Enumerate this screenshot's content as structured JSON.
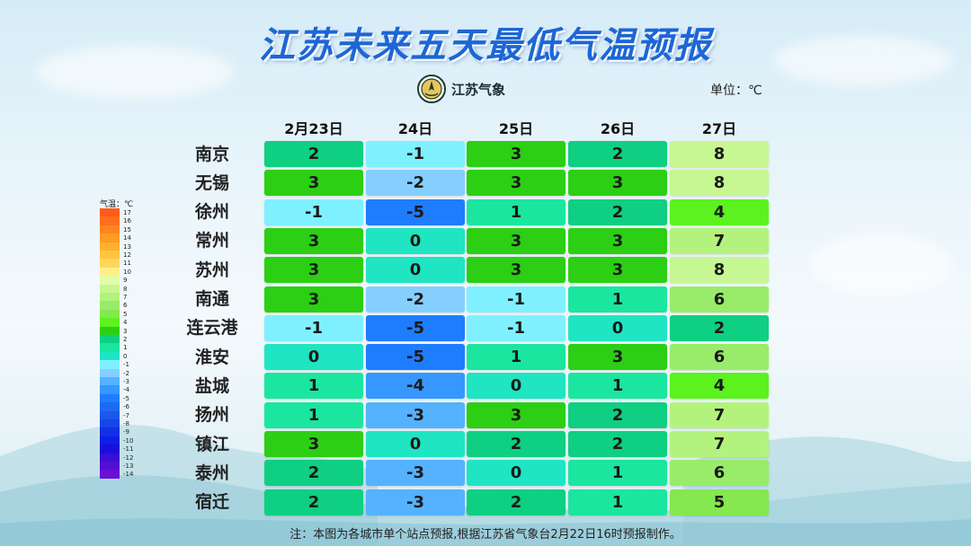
{
  "title": "江苏未来五天最低气温预报",
  "logo": {
    "text": "江苏气象",
    "icon": "meteorological-seal-icon"
  },
  "unit_label": "单位：℃",
  "chart_data": {
    "type": "table",
    "columns": [
      "2月23日",
      "24日",
      "25日",
      "26日",
      "27日"
    ],
    "rows": [
      {
        "city": "南京",
        "values": [
          2,
          -1,
          3,
          2,
          8
        ]
      },
      {
        "city": "无锡",
        "values": [
          3,
          -2,
          3,
          3,
          8
        ]
      },
      {
        "city": "徐州",
        "values": [
          -1,
          -5,
          1,
          2,
          4
        ]
      },
      {
        "city": "常州",
        "values": [
          3,
          0,
          3,
          3,
          7
        ]
      },
      {
        "city": "苏州",
        "values": [
          3,
          0,
          3,
          3,
          8
        ]
      },
      {
        "city": "南通",
        "values": [
          3,
          -2,
          -1,
          1,
          6
        ]
      },
      {
        "city": "连云港",
        "values": [
          -1,
          -5,
          -1,
          0,
          2
        ]
      },
      {
        "city": "淮安",
        "values": [
          0,
          -5,
          1,
          3,
          6
        ]
      },
      {
        "city": "盐城",
        "values": [
          1,
          -4,
          0,
          1,
          4
        ]
      },
      {
        "city": "扬州",
        "values": [
          1,
          -3,
          3,
          2,
          7
        ]
      },
      {
        "city": "镇江",
        "values": [
          3,
          0,
          2,
          2,
          7
        ]
      },
      {
        "city": "泰州",
        "values": [
          2,
          -3,
          0,
          1,
          6
        ]
      },
      {
        "city": "宿迁",
        "values": [
          2,
          -3,
          2,
          1,
          5
        ]
      }
    ],
    "legend": {
      "title": "气温：℃",
      "levels": [
        17,
        16,
        15,
        14,
        13,
        12,
        11,
        10,
        9,
        8,
        7,
        6,
        5,
        4,
        3,
        2,
        1,
        0,
        -1,
        -2,
        -3,
        -4,
        -5,
        -6,
        -7,
        -8,
        -9,
        -10,
        -11,
        -12,
        -13,
        -14
      ],
      "colors": {
        "17": "#ff5a1a",
        "16": "#ff6e1c",
        "15": "#ff8421",
        "14": "#ff9a24",
        "13": "#ffb02e",
        "12": "#ffc440",
        "11": "#ffd65c",
        "10": "#fff08a",
        "9": "#e4fba8",
        "8": "#c6f792",
        "7": "#b4f27e",
        "6": "#98ec6a",
        "5": "#84e84e",
        "4": "#5bf21e",
        "3": "#2ccf14",
        "2": "#0fcf82",
        "1": "#1ae6a0",
        "0": "#1fe5c2",
        "-1": "#7ff0ff",
        "-2": "#84cfff",
        "-3": "#54b2ff",
        "-4": "#3597ff",
        "-5": "#1e7dff",
        "-6": "#1c6af2",
        "-7": "#1a58ee",
        "-8": "#1646e6",
        "-9": "#1230e6",
        "-10": "#0e1fe8",
        "-11": "#1a10d9",
        "-12": "#3a0fd6",
        "-13": "#520fd3",
        "-14": "#6a10d6"
      }
    }
  },
  "note": "注：本图为各城市单个站点预报,根据江苏省气象台2月22日16时预报制作。"
}
